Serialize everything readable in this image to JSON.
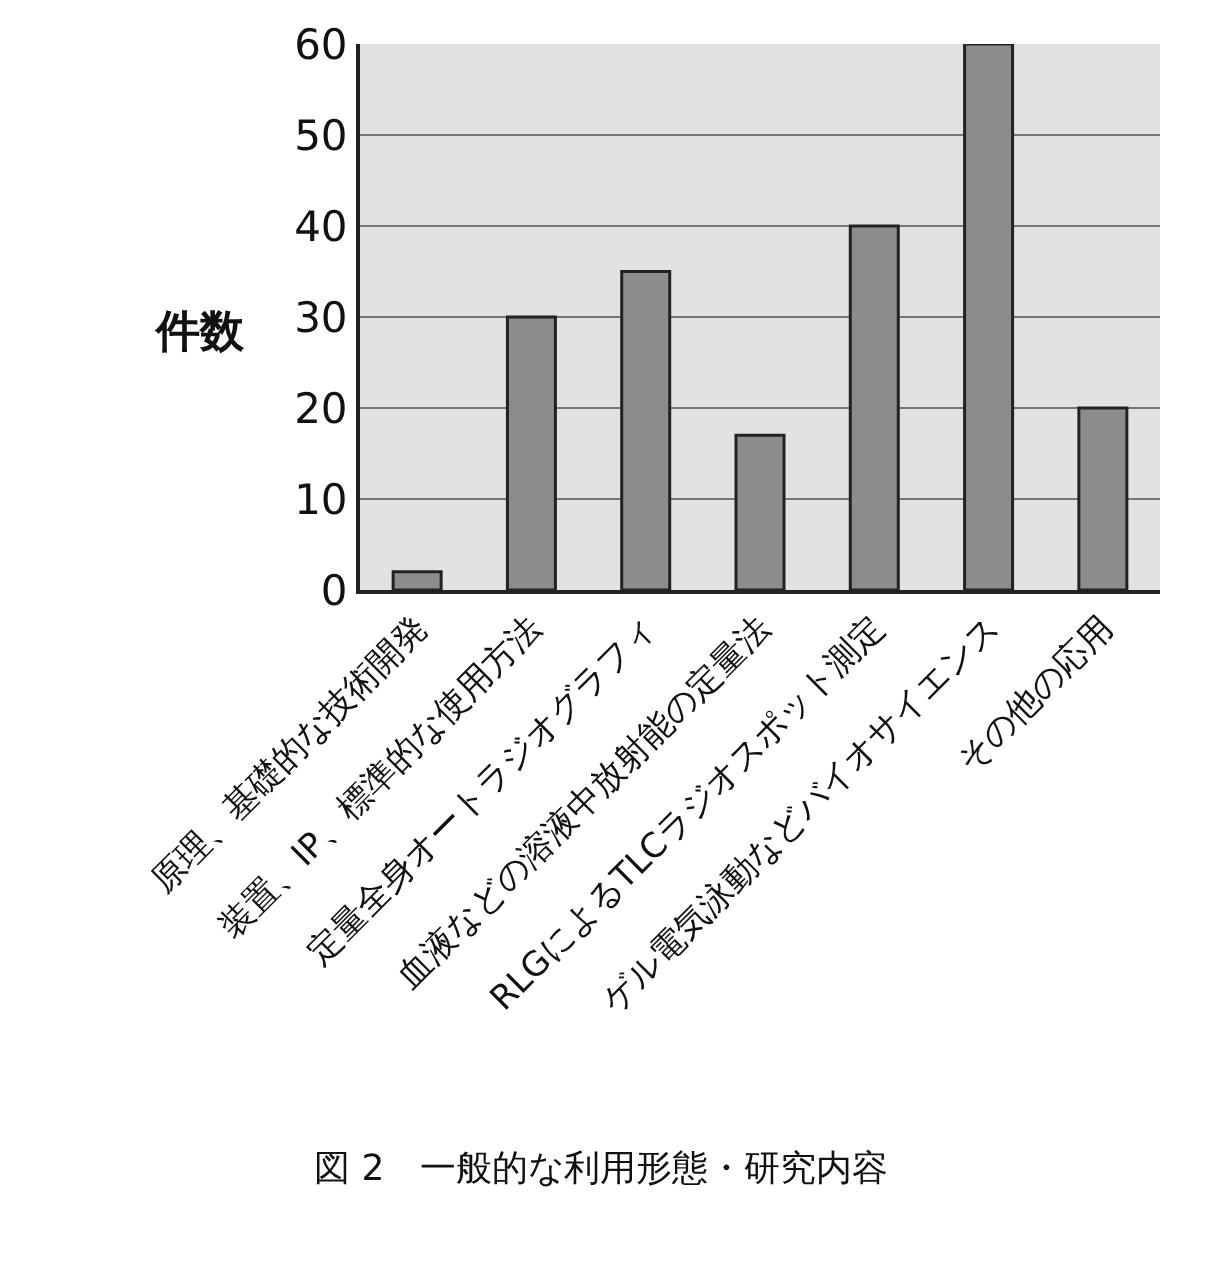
{
  "chart_data": {
    "type": "bar",
    "categories": [
      "原理、基礎的な技術開発",
      "装置、IP、標準的な使用方法",
      "定量全身オートラジオグラフィ",
      "血液などの溶液中放射能の定量法",
      "RLGによるTLCラジオスポット測定",
      "ゲル電気泳動などバイオサイエンス",
      "その他の応用"
    ],
    "values": [
      2,
      30,
      35,
      17,
      40,
      60,
      20
    ],
    "color": "#8c8c8c",
    "ylabel": "件数",
    "ylim": [
      0,
      60
    ],
    "yticks": [
      0,
      10,
      20,
      30,
      40,
      50,
      60
    ],
    "grid": "y",
    "annotations": [
      "図 2　一般的な利用形態・研究内容"
    ]
  }
}
